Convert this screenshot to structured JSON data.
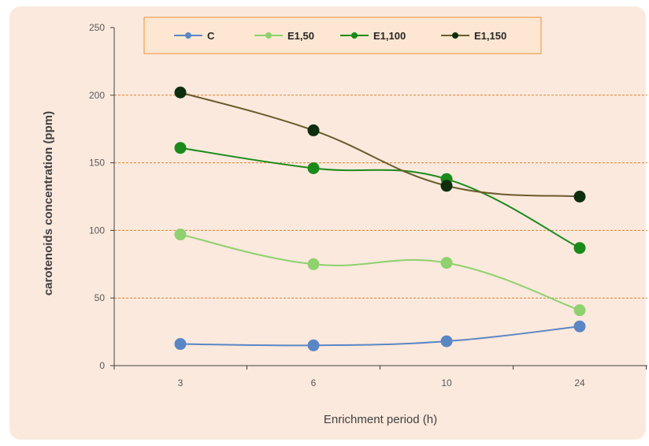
{
  "chart_data": {
    "type": "line",
    "categories": [
      "3",
      "6",
      "10",
      "24"
    ],
    "xlabel": "Enrichment  period (h)",
    "ylabel": "carotenoids concentration (ppm)",
    "ylim": [
      0,
      250
    ],
    "yticks": [
      "0",
      "50",
      "100",
      "150",
      "200",
      "250"
    ],
    "grid": "horizontal dashed",
    "legend": "top",
    "series": [
      {
        "name": "C",
        "values": [
          16,
          15,
          18,
          29
        ],
        "color": "#5b86c4"
      },
      {
        "name": "E1,50",
        "values": [
          97,
          75,
          76,
          41
        ],
        "color": "#8ed16e"
      },
      {
        "name": "E1,100",
        "values": [
          161,
          146,
          138,
          87
        ],
        "color": "#1a8a1a"
      },
      {
        "name": "E1,150",
        "values": [
          202,
          174,
          133,
          125
        ],
        "color": "#0e2e0e",
        "line_color": "#6b5a2c"
      }
    ],
    "colors": {
      "background": "#fbe9dd",
      "grid": "#d9822b",
      "legend_bg": "#fde7d2",
      "legend_border": "#e8913a"
    }
  }
}
